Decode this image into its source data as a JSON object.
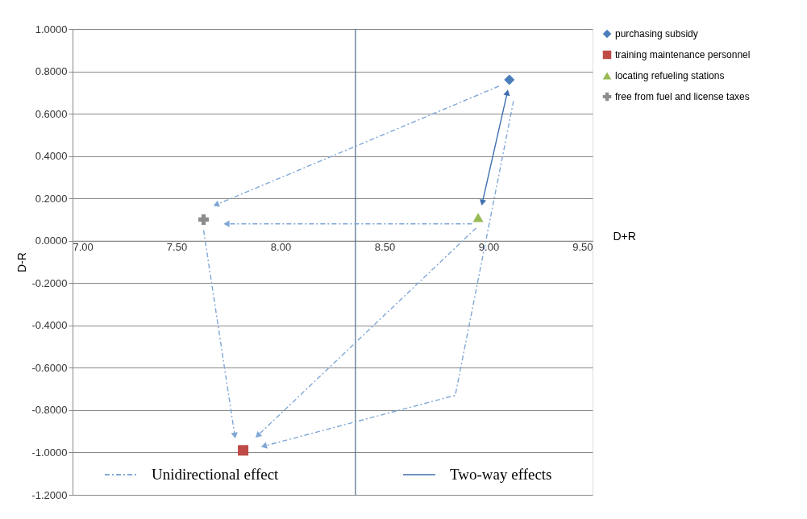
{
  "chart_data": {
    "type": "scatter",
    "xlabel": "D+R",
    "ylabel": "D-R",
    "xlim": [
      7.0,
      9.5
    ],
    "xticks": [
      {
        "value": 7.0,
        "label": "7.00"
      },
      {
        "value": 7.5,
        "label": "7.50"
      },
      {
        "value": 8.0,
        "label": "8.00"
      },
      {
        "value": 8.5,
        "label": "8.50"
      },
      {
        "value": 9.0,
        "label": "9.00"
      },
      {
        "value": 9.5,
        "label": "9.50"
      }
    ],
    "ylim": [
      -1.2,
      1.0
    ],
    "yticks": [
      {
        "value": -1.2,
        "label": "-1.2000"
      },
      {
        "value": -1.0,
        "label": "-1.0000"
      },
      {
        "value": -0.8,
        "label": "-0.8000"
      },
      {
        "value": -0.6,
        "label": "-0.6000"
      },
      {
        "value": -0.4,
        "label": "-0.4000"
      },
      {
        "value": -0.2,
        "label": "-0.2000"
      },
      {
        "value": 0,
        "label": "0.0000"
      },
      {
        "value": 0.2,
        "label": "0.2000"
      },
      {
        "value": 0.4,
        "label": "0.4000"
      },
      {
        "value": 0.6,
        "label": "0.6000"
      },
      {
        "value": 0.8,
        "label": "0.8000"
      },
      {
        "value": 1.0,
        "label": "1.0000"
      }
    ],
    "grid": "y",
    "legend": "top right",
    "series": [
      {
        "name": "purchasing subsidy",
        "color": "#4a7ebb",
        "marker": "diamond",
        "x": [
          9.1
        ],
        "values": [
          0.76
        ]
      },
      {
        "name": "training maintenance personnel",
        "color": "#be4b48",
        "marker": "square",
        "x": [
          7.82
        ],
        "values": [
          -0.99
        ]
      },
      {
        "name": "locating refueling stations",
        "color": "#98b954",
        "marker": "triangle",
        "x": [
          8.95
        ],
        "values": [
          0.11
        ]
      },
      {
        "name": "free from fuel and license taxes",
        "color": "#8c8c8c",
        "marker": "cross",
        "x": [
          7.63
        ],
        "values": [
          0.1
        ]
      },
      {
        "type": "line",
        "color": "#7fa7d6",
        "line_style": "dashed",
        "x": [
          9.05,
          7.69
        ],
        "values": [
          0.73,
          0.17
        ]
      },
      {
        "type": "line",
        "color": "#7fa7d6",
        "line_style": "dashed",
        "x": [
          8.92,
          7.74
        ],
        "values": [
          0.08,
          0.08
        ]
      },
      {
        "type": "line",
        "color": "#7fa7d6",
        "line_style": "dashed",
        "x": [
          9.12,
          8.84,
          7.92
        ],
        "values": [
          0.66,
          -0.73,
          -0.97
        ]
      },
      {
        "type": "line",
        "color": "#7fa7d6",
        "line_style": "dashed",
        "x": [
          8.94,
          7.89
        ],
        "values": [
          0.06,
          -0.92
        ]
      },
      {
        "type": "line",
        "color": "#7fa7d6",
        "line_style": "dashed",
        "x": [
          7.63,
          7.78
        ],
        "values": [
          0.05,
          -0.92
        ]
      },
      {
        "type": "line",
        "color": "#3f6fb0",
        "line_style": "solid",
        "marker": "triangle",
        "x": [
          9.09,
          8.97
        ],
        "values": [
          0.7,
          0.18
        ]
      }
    ],
    "ref_lines": [
      {
        "axis": "x",
        "value": 8.36,
        "color": "#4a6a88"
      }
    ],
    "annotations": [
      "Unidirectional effect",
      "Two-way effects"
    ]
  }
}
